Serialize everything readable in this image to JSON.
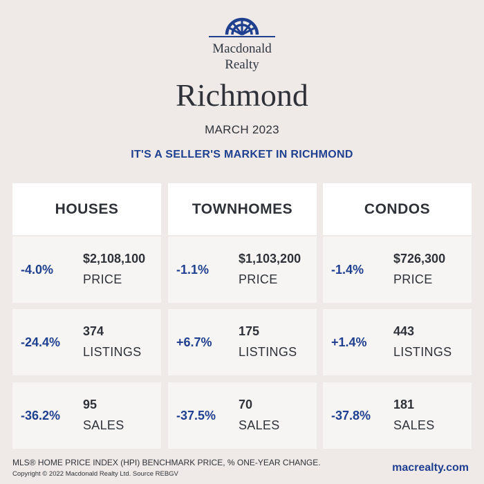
{
  "brand": {
    "line1": "Macdonald",
    "line2": "Realty",
    "color": "#1f3f8f",
    "icon": "macdonald-realty-logo"
  },
  "city": "Richmond",
  "date": "MARCH 2023",
  "tagline": "IT'S A SELLER'S MARKET IN RICHMOND",
  "columns": [
    {
      "title": "HOUSES",
      "stats": [
        {
          "change": "-4.0%",
          "value": "$2,108,100",
          "metric": "PRICE"
        },
        {
          "change": "-24.4%",
          "value": "374",
          "metric": "LISTINGS"
        },
        {
          "change": "-36.2%",
          "value": "95",
          "metric": "SALES"
        }
      ]
    },
    {
      "title": "TOWNHOMES",
      "stats": [
        {
          "change": "-1.1%",
          "value": "$1,103,200",
          "metric": "PRICE"
        },
        {
          "change": "+6.7%",
          "value": "175",
          "metric": "LISTINGS"
        },
        {
          "change": "-37.5%",
          "value": "70",
          "metric": "SALES"
        }
      ]
    },
    {
      "title": "CONDOS",
      "stats": [
        {
          "change": "-1.4%",
          "value": "$726,300",
          "metric": "PRICE"
        },
        {
          "change": "+1.4%",
          "value": "443",
          "metric": "LISTINGS"
        },
        {
          "change": "-37.8%",
          "value": "181",
          "metric": "SALES"
        }
      ]
    }
  ],
  "footer": {
    "note": "MLS® HOME PRICE INDEX (HPI) BENCHMARK PRICE, % ONE-YEAR CHANGE.",
    "copyright": "Copyright © 2022 Macdonald Realty Ltd. Source REBGV",
    "website": "macrealty.com"
  }
}
